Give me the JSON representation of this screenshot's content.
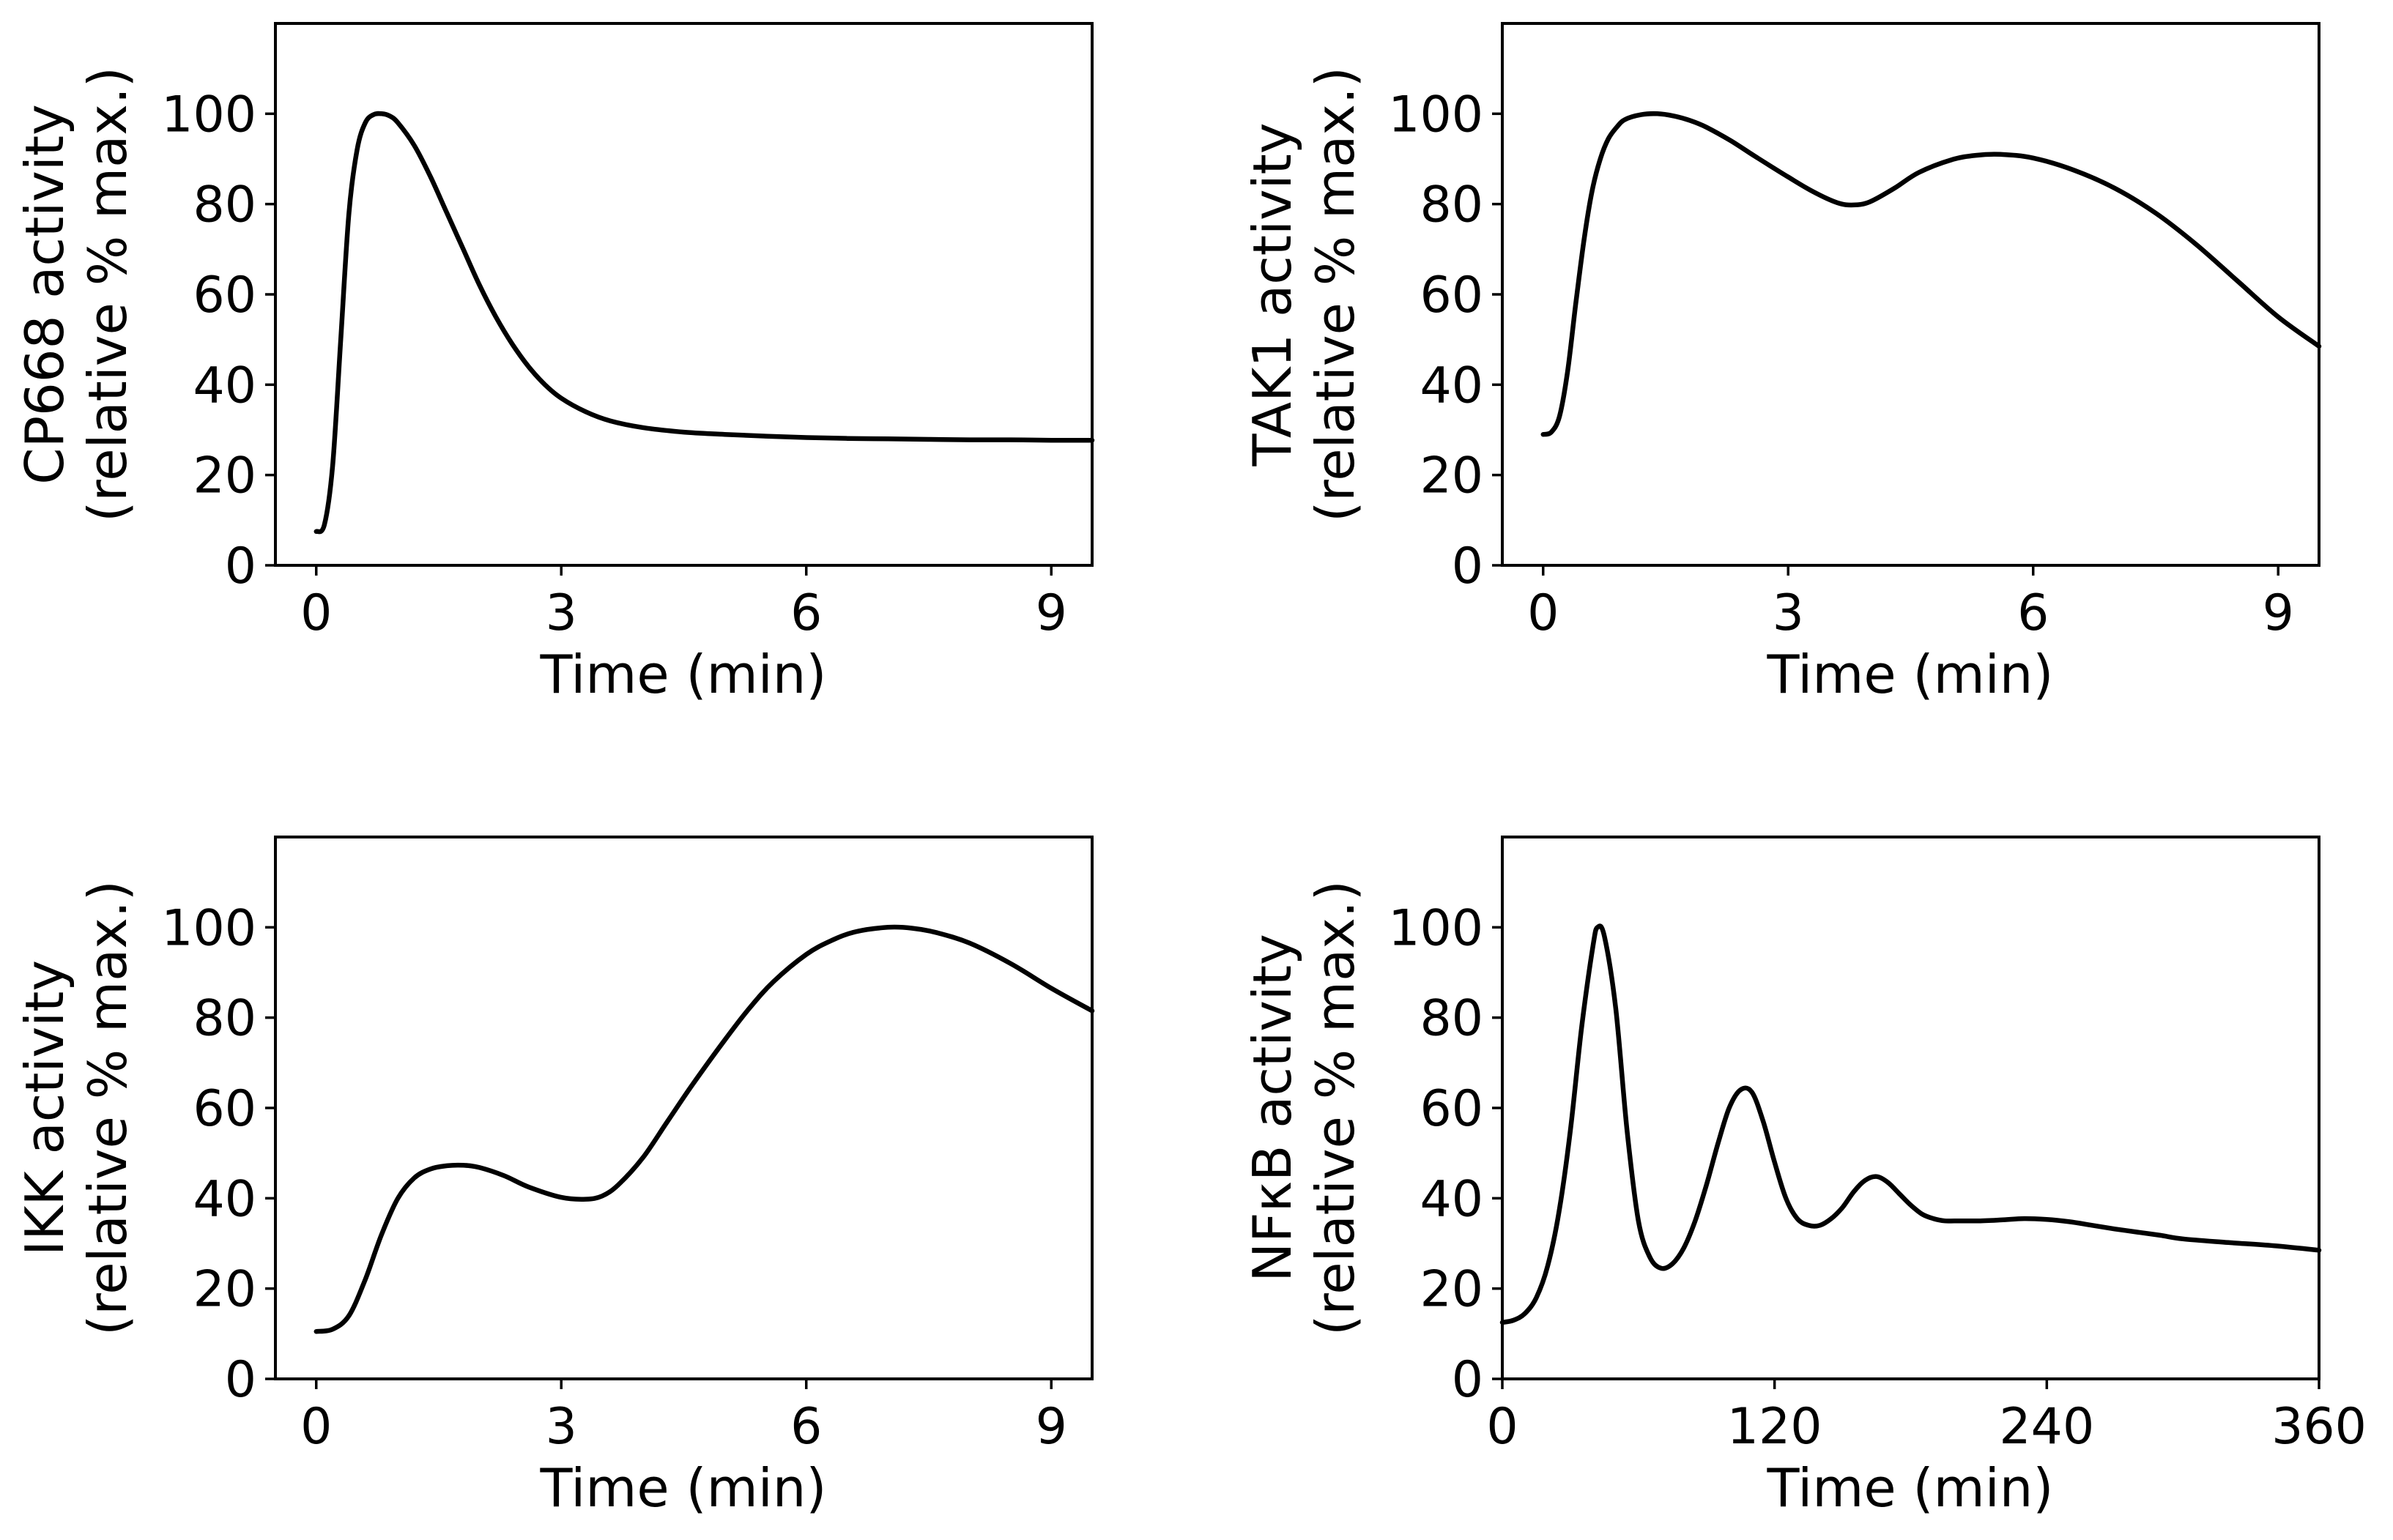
{
  "chart_data": [
    {
      "type": "line",
      "xlabel": "Time (min)",
      "ylabel": "CP668 activity",
      "ylabel_sub": "(relative % max.)",
      "xlim": [
        -0.5,
        9.5
      ],
      "ylim": [
        0,
        120
      ],
      "xticks": [
        0,
        3,
        6,
        9
      ],
      "yticks": [
        0,
        20,
        40,
        60,
        80,
        100
      ],
      "series": [
        {
          "name": "CP668 activity",
          "x": [
            0,
            0.1,
            0.2,
            0.3,
            0.4,
            0.5,
            0.6,
            0.7,
            0.8,
            0.9,
            1.0,
            1.2,
            1.4,
            1.6,
            1.8,
            2.0,
            2.2,
            2.4,
            2.6,
            2.8,
            3.0,
            3.3,
            3.6,
            4.0,
            4.5,
            5.0,
            5.5,
            6.0,
            6.5,
            7.0,
            7.5,
            8.0,
            8.5,
            9.0,
            9.5
          ],
          "values": [
            7.5,
            9,
            22,
            50,
            78,
            92,
            98,
            99.8,
            100,
            99.5,
            98,
            93,
            86,
            78,
            70,
            62,
            55,
            49,
            44,
            40,
            37,
            34,
            32,
            30.5,
            29.5,
            29,
            28.6,
            28.3,
            28.1,
            28.0,
            27.9,
            27.8,
            27.8,
            27.7,
            27.7
          ]
        }
      ]
    },
    {
      "type": "line",
      "xlabel": "Time (min)",
      "ylabel": "TAK1 activity",
      "ylabel_sub": "(relative % max.)",
      "xlim": [
        -0.5,
        9.5
      ],
      "ylim": [
        0,
        120
      ],
      "xticks": [
        0,
        3,
        6,
        9
      ],
      "yticks": [
        0,
        20,
        40,
        60,
        80,
        100
      ],
      "series": [
        {
          "name": "TAK1 activity",
          "x": [
            0,
            0.1,
            0.2,
            0.3,
            0.4,
            0.5,
            0.6,
            0.7,
            0.8,
            0.9,
            1.0,
            1.2,
            1.4,
            1.6,
            1.8,
            2.0,
            2.3,
            2.6,
            3.0,
            3.3,
            3.6,
            3.8,
            4.0,
            4.3,
            4.6,
            5.0,
            5.3,
            5.6,
            6.0,
            6.5,
            7.0,
            7.5,
            8.0,
            8.5,
            9.0,
            9.5
          ],
          "values": [
            29,
            29.5,
            33,
            43,
            58,
            72,
            83,
            90,
            94.5,
            97,
            98.7,
            99.8,
            100,
            99.5,
            98.5,
            97,
            94,
            90.5,
            86,
            82.8,
            80.3,
            79.8,
            80.5,
            83.5,
            87,
            89.8,
            90.8,
            91,
            90.2,
            87.5,
            83.5,
            78,
            71,
            63,
            55,
            48.5
          ]
        }
      ]
    },
    {
      "type": "line",
      "xlabel": "Time (min)",
      "ylabel": "IKK activity",
      "ylabel_sub": "(relative % max.)",
      "xlim": [
        -0.5,
        9.5
      ],
      "ylim": [
        0,
        120
      ],
      "xticks": [
        0,
        3,
        6,
        9
      ],
      "yticks": [
        0,
        20,
        40,
        60,
        80,
        100
      ],
      "series": [
        {
          "name": "IKK activity",
          "x": [
            0,
            0.2,
            0.4,
            0.6,
            0.8,
            1.0,
            1.2,
            1.4,
            1.6,
            1.8,
            2.0,
            2.3,
            2.6,
            3.0,
            3.3,
            3.5,
            3.7,
            4.0,
            4.3,
            4.6,
            5.0,
            5.3,
            5.6,
            6.0,
            6.3,
            6.6,
            7.0,
            7.3,
            7.6,
            8.0,
            8.5,
            9.0,
            9.5
          ],
          "values": [
            10.5,
            11,
            14,
            22,
            32,
            40,
            44.5,
            46.5,
            47.2,
            47.3,
            46.8,
            45,
            42.5,
            40.2,
            39.8,
            40.5,
            43,
            49,
            57,
            65,
            75,
            82,
            88,
            94,
            97,
            99,
            100,
            99.8,
            98.8,
            96.5,
            92,
            86.5,
            81.5
          ]
        }
      ]
    },
    {
      "type": "line",
      "xlabel": "Time (min)",
      "ylabel": "NFκB activity",
      "ylabel_sub": "(relative % max.)",
      "xlim": [
        0,
        360
      ],
      "ylim": [
        0,
        120
      ],
      "xticks": [
        0,
        120,
        240,
        360
      ],
      "yticks": [
        0,
        20,
        40,
        60,
        80,
        100
      ],
      "series": [
        {
          "name": "NFκB activity",
          "x": [
            0,
            5,
            10,
            15,
            20,
            25,
            30,
            35,
            40,
            42,
            45,
            50,
            55,
            60,
            65,
            70,
            75,
            80,
            85,
            90,
            95,
            100,
            105,
            110,
            115,
            120,
            125,
            130,
            135,
            140,
            145,
            150,
            155,
            160,
            165,
            170,
            175,
            180,
            185,
            190,
            195,
            200,
            210,
            220,
            230,
            240,
            250,
            260,
            270,
            280,
            290,
            300,
            320,
            340,
            360
          ],
          "values": [
            12.5,
            13,
            14.5,
            18,
            25,
            37,
            55,
            78,
            96,
            100,
            98,
            82,
            55,
            35,
            27,
            24.5,
            25.5,
            29,
            35,
            43,
            52,
            60,
            64,
            63.5,
            57,
            48,
            40,
            35.5,
            34,
            34,
            35.5,
            38,
            41.5,
            44,
            44.8,
            43.5,
            41,
            38.5,
            36.5,
            35.5,
            35,
            35,
            35,
            35.2,
            35.5,
            35.3,
            34.8,
            34,
            33.2,
            32.5,
            31.8,
            31,
            30.2,
            29.5,
            28.5
          ]
        }
      ]
    }
  ]
}
